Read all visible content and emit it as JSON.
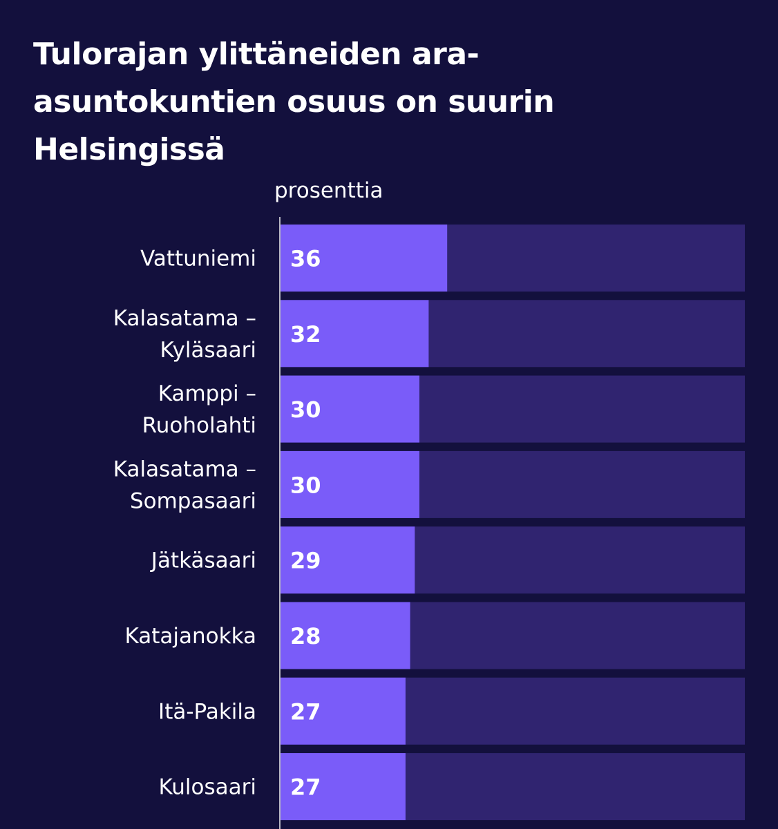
{
  "title": "Tulorajan ylittäneiden ara-asuntokuntien osuus on suurin Helsingissä",
  "unit_label": "prosenttia",
  "colors": {
    "background": "#13103d",
    "bar_fill": "#7a5cf9",
    "bar_track": "#302470",
    "axis_line": "#b6b6c2",
    "text": "#ffffff"
  },
  "chart_data": {
    "type": "bar",
    "orientation": "horizontal",
    "title": "Tulorajan ylittäneiden ara-asuntokuntien osuus on suurin Helsingissä",
    "xlabel": "prosenttia",
    "ylabel": "",
    "xlim": [
      0,
      100
    ],
    "grid": false,
    "data_labels": true,
    "categories": [
      [
        "Vattuniemi"
      ],
      [
        "Kalasatama –",
        "Kyläsaari"
      ],
      [
        "Kamppi –",
        "Ruoholahti"
      ],
      [
        "Kalasatama –",
        "Sompasaari"
      ],
      [
        "Jätkäsaari"
      ],
      [
        "Katajanokka"
      ],
      [
        "Itä-Pakila"
      ],
      [
        "Kulosaari"
      ]
    ],
    "values": [
      36,
      32,
      30,
      30,
      29,
      28,
      27,
      27
    ]
  }
}
